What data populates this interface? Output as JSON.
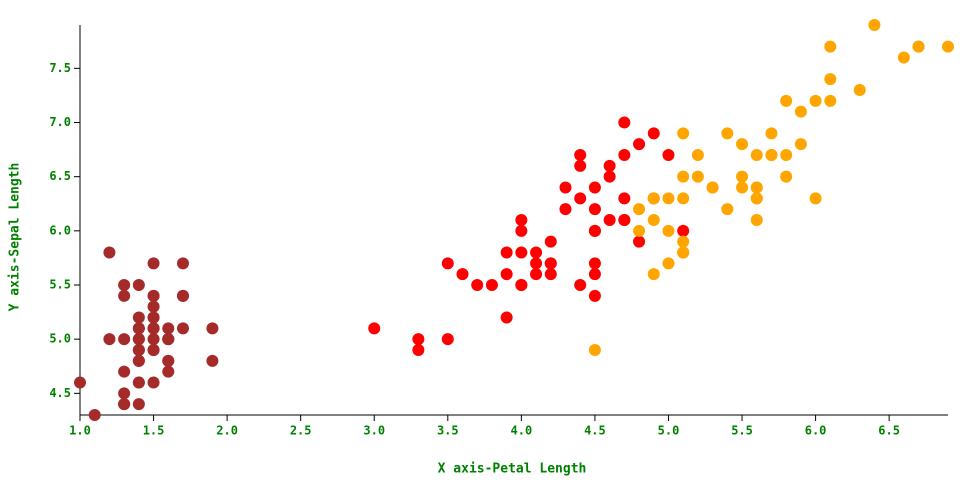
{
  "chart_data": {
    "type": "scatter",
    "x_label": "X axis-Petal Length",
    "y_label": "Y axis-Sepal Length",
    "xlim": [
      1.0,
      6.9
    ],
    "ylim": [
      4.3,
      7.9
    ],
    "xticks": [
      {
        "value": 1,
        "label": "1.0"
      },
      1.5,
      {
        "value": 2,
        "label": "2.0"
      },
      2.5,
      {
        "value": 3,
        "label": "3.0"
      },
      3.5,
      {
        "value": 4,
        "label": "4.0"
      },
      4.5,
      {
        "value": 5,
        "label": "5.0"
      },
      5.5,
      {
        "value": 6,
        "label": "6.0"
      },
      6.5
    ],
    "yticks": [
      4.5,
      {
        "value": 5,
        "label": "5.0"
      },
      5.5,
      {
        "value": 6,
        "label": "6.0"
      },
      6.5,
      {
        "value": 7,
        "label": "7.0"
      },
      7.5
    ],
    "series": [
      {
        "color": "#a52a2a",
        "x": [
          1.4,
          1.4,
          1.3,
          1.5,
          1.4,
          1.7,
          1.4,
          1.5,
          1.4,
          1.5,
          1.5,
          1.6,
          1.4,
          1.1,
          1.2,
          1.5,
          1.3,
          1.4,
          1.7,
          1.5,
          1.7,
          1.5,
          1.0,
          1.7,
          1.9,
          1.6,
          1.6,
          1.5,
          1.4,
          1.6,
          1.6,
          1.5,
          1.5,
          1.4,
          1.5,
          1.2,
          1.3,
          1.4,
          1.3,
          1.5,
          1.3,
          1.3,
          1.3,
          1.6,
          1.9,
          1.4,
          1.6,
          1.4,
          1.5,
          1.4
        ],
        "values": [
          5.1,
          4.9,
          4.7,
          4.6,
          5.0,
          5.4,
          4.6,
          5.0,
          4.4,
          4.9,
          5.4,
          4.8,
          4.8,
          4.3,
          5.8,
          5.7,
          5.4,
          5.1,
          5.7,
          5.1,
          5.4,
          5.1,
          4.6,
          5.1,
          4.8,
          5.0,
          5.0,
          5.2,
          5.2,
          4.7,
          4.8,
          5.4,
          5.2,
          5.5,
          4.9,
          5.0,
          5.5,
          4.9,
          4.4,
          5.1,
          5.0,
          4.5,
          4.4,
          5.0,
          5.1,
          4.8,
          5.1,
          4.6,
          5.3,
          5.0
        ]
      },
      {
        "color": "#ff0000",
        "x": [
          4.7,
          4.5,
          4.9,
          4.0,
          4.6,
          4.5,
          4.7,
          3.3,
          4.6,
          3.9,
          3.5,
          4.2,
          4.0,
          4.7,
          3.6,
          4.4,
          4.5,
          4.1,
          4.5,
          3.9,
          4.8,
          4.0,
          4.9,
          4.7,
          4.3,
          4.4,
          4.8,
          5.0,
          4.5,
          3.5,
          3.8,
          3.7,
          3.9,
          5.1,
          4.5,
          4.5,
          4.7,
          4.4,
          4.1,
          4.0,
          4.4,
          4.6,
          4.0,
          3.3,
          4.2,
          4.2,
          4.2,
          4.3,
          3.0,
          4.1
        ],
        "values": [
          7.0,
          6.4,
          6.9,
          5.5,
          6.5,
          5.7,
          6.3,
          4.9,
          6.6,
          5.2,
          5.0,
          5.9,
          6.0,
          6.1,
          5.6,
          6.7,
          5.6,
          5.8,
          6.2,
          5.6,
          5.9,
          6.1,
          6.3,
          6.1,
          6.4,
          6.6,
          6.8,
          6.7,
          6.0,
          5.7,
          5.5,
          5.5,
          5.8,
          6.0,
          5.4,
          6.0,
          6.7,
          6.3,
          5.6,
          5.5,
          5.5,
          6.1,
          5.8,
          5.0,
          5.6,
          5.7,
          5.7,
          6.2,
          5.1,
          5.7
        ]
      },
      {
        "color": "#ffa500",
        "x": [
          6.0,
          5.1,
          5.9,
          5.6,
          5.8,
          6.6,
          4.5,
          6.3,
          5.8,
          6.1,
          5.1,
          5.3,
          5.5,
          5.0,
          5.1,
          5.3,
          5.5,
          6.7,
          6.9,
          5.0,
          5.7,
          4.9,
          6.7,
          4.9,
          5.7,
          6.0,
          4.8,
          4.9,
          5.6,
          5.8,
          6.1,
          6.4,
          5.6,
          5.1,
          5.6,
          6.1,
          5.6,
          5.5,
          4.8,
          5.4,
          5.6,
          5.1,
          5.1,
          5.9,
          5.7,
          5.2,
          5.0,
          5.2,
          5.4,
          5.1
        ],
        "values": [
          6.3,
          5.8,
          7.1,
          6.3,
          6.5,
          7.6,
          4.9,
          7.3,
          6.7,
          7.2,
          6.5,
          6.4,
          6.8,
          5.7,
          5.8,
          6.4,
          6.5,
          7.7,
          7.7,
          6.0,
          6.9,
          5.6,
          7.7,
          6.3,
          6.7,
          7.2,
          6.2,
          6.1,
          6.4,
          7.2,
          7.4,
          7.9,
          6.4,
          6.3,
          6.1,
          7.7,
          6.3,
          6.4,
          6.0,
          6.9,
          6.7,
          6.9,
          5.8,
          6.8,
          6.7,
          6.7,
          6.3,
          6.5,
          6.2,
          5.9
        ]
      }
    ]
  }
}
